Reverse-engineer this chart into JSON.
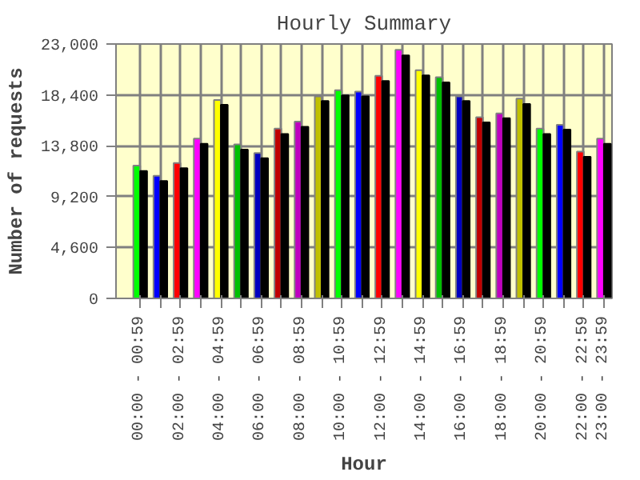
{
  "chart_data": {
    "type": "bar",
    "title": "Hourly Summary",
    "xlabel": "Hour",
    "ylabel": "Number of requests",
    "categories": [
      "00:00 - 00:59",
      null,
      "02:00 - 02:59",
      null,
      "04:00 - 04:59",
      null,
      "06:00 - 06:59",
      null,
      "08:00 - 08:59",
      null,
      "10:00 - 10:59",
      null,
      "12:00 - 12:59",
      null,
      "14:00 - 14:59",
      null,
      "16:00 - 16:59",
      null,
      "18:00 - 18:59",
      null,
      "20:00 - 20:59",
      null,
      "22:00 - 22:59",
      "23:00 - 23:59"
    ],
    "series": [
      {
        "colors": [
          "#00ff00",
          "#0000ff",
          "#ff0000",
          "#ff00ff",
          "#ffff00",
          "#00c000",
          "#0000c0",
          "#c00000",
          "#c000c0",
          "#c0c000",
          "#00ff00",
          "#0000ff",
          "#ff0000",
          "#ff00ff",
          "#ffff00",
          "#00c000",
          "#0000c0",
          "#c00000",
          "#c000c0",
          "#c0c000",
          "#00ff00",
          "#0000ff",
          "#ff0000",
          "#ff00ff"
        ],
        "values": [
          12000,
          11090,
          12250,
          14440,
          17930,
          13930,
          13150,
          15350,
          15990,
          18270,
          18830,
          18700,
          20120,
          22480,
          20640,
          19990,
          18270,
          16380,
          16720,
          18060,
          15350,
          15690,
          13280,
          14440
        ]
      },
      {
        "color": "#000000",
        "values": [
          11520,
          10620,
          11780,
          13970,
          17500,
          13460,
          12680,
          14870,
          15520,
          17840,
          18360,
          18270,
          19650,
          21970,
          20160,
          19520,
          17840,
          15910,
          16290,
          17580,
          14870,
          15260,
          12810,
          13970
        ]
      }
    ],
    "ylim": [
      0,
      23000
    ],
    "yticks": [
      0,
      {
        "value": 4600,
        "label": "4,600"
      },
      {
        "value": 9200,
        "label": "9,200"
      },
      {
        "value": 13800,
        "label": "13,800"
      },
      {
        "value": 18400,
        "label": "18,400"
      },
      {
        "value": 23000,
        "label": "23,000"
      }
    ],
    "grid": true
  }
}
